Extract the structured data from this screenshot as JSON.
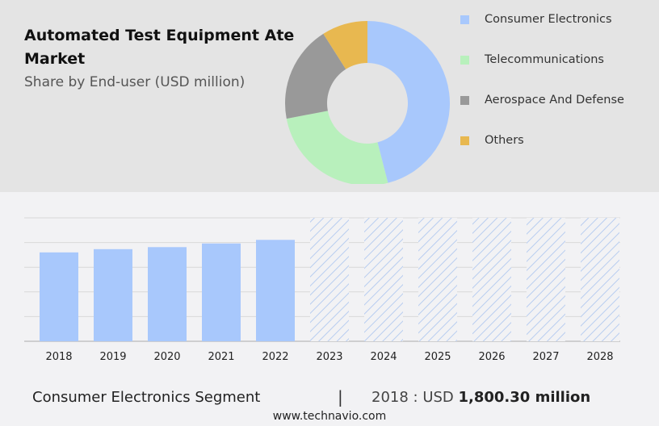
{
  "header": {
    "title": "Automated Test Equipment Ate Market",
    "subtitle": "Share by End-user (USD million)"
  },
  "chart_data": [
    {
      "type": "pie",
      "donut": true,
      "series": [
        {
          "name": "Consumer Electronics",
          "value": 46,
          "color": "#a8c8fc"
        },
        {
          "name": "Telecommunications",
          "value": 26,
          "color": "#b8f0bc"
        },
        {
          "name": "Aerospace And Defense",
          "value": 19,
          "color": "#999999"
        },
        {
          "name": "Others",
          "value": 9,
          "color": "#e8b850"
        }
      ]
    },
    {
      "type": "bar",
      "categories": [
        "2018",
        "2019",
        "2020",
        "2021",
        "2022",
        "2023",
        "2024",
        "2025",
        "2026",
        "2027",
        "2028"
      ],
      "values": [
        1800.3,
        1866,
        1907,
        1981,
        2054,
        null,
        null,
        null,
        null,
        null,
        null
      ],
      "forecast": [
        "2023",
        "2024",
        "2025",
        "2026",
        "2027",
        "2028"
      ],
      "ylim": [
        0,
        2500
      ],
      "grid": true,
      "color": "#a8c8fc",
      "xlabel": "",
      "ylabel": ""
    }
  ],
  "footer": {
    "segment": "Consumer Electronics Segment",
    "separator": "|",
    "value_prefix": "2018 : USD ",
    "value": "1,800.30 million",
    "site": "www.technavio.com"
  }
}
